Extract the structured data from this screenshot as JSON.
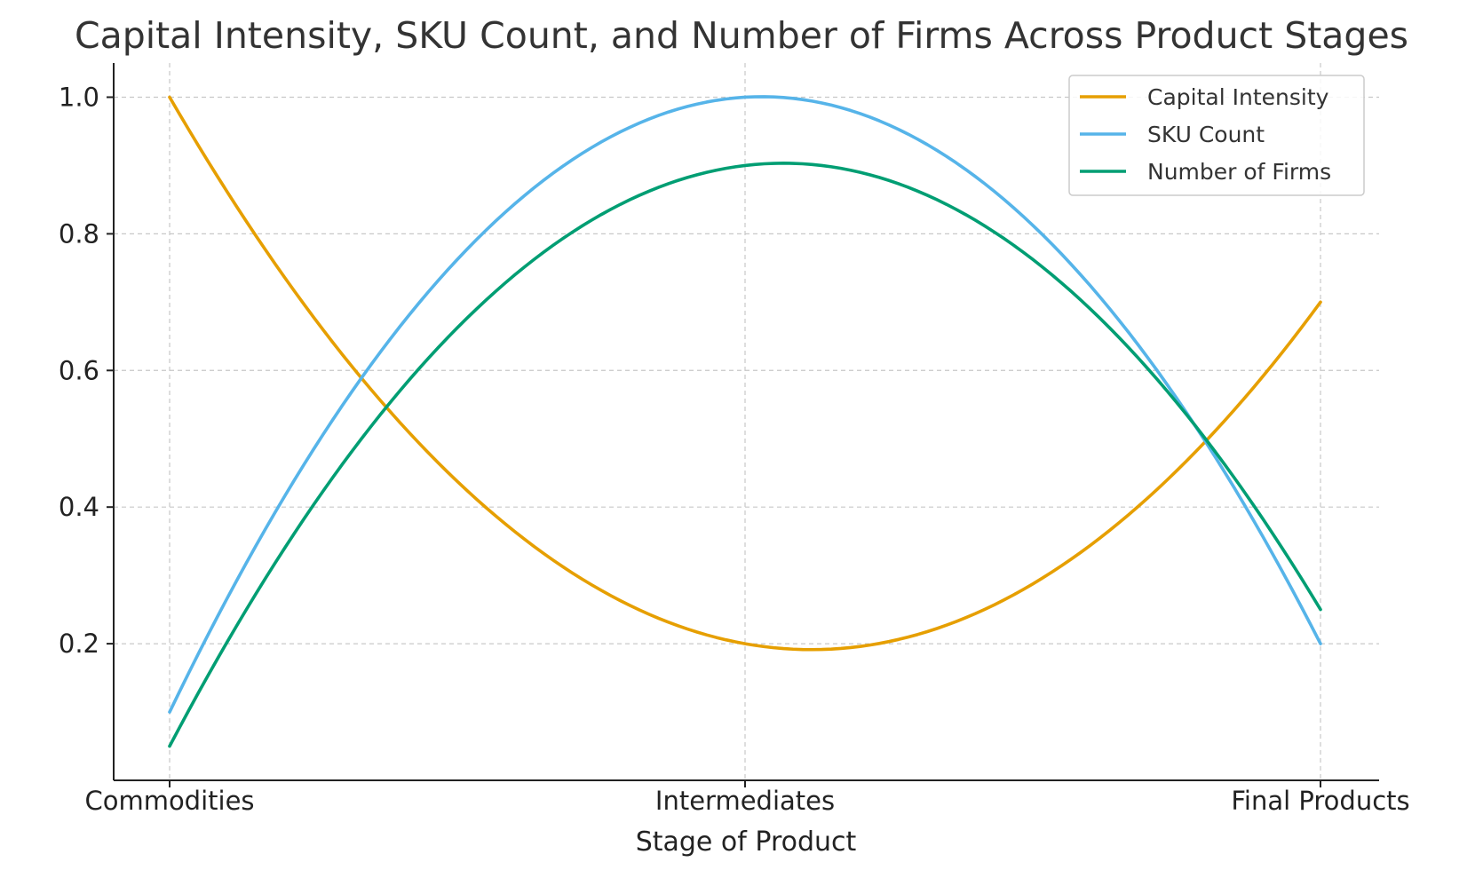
{
  "chart_data": {
    "type": "line",
    "title": "Capital Intensity, SKU Count, and Number of Firms Across Product Stages",
    "xlabel": "Stage of Product",
    "ylabel": "",
    "categories": [
      "Commodities",
      "Intermediates",
      "Final Products"
    ],
    "ylim": [
      0.0,
      1.05
    ],
    "yticks": [
      0.2,
      0.4,
      0.6,
      0.8,
      1.0
    ],
    "ytick_labels": [
      "0.2",
      "0.4",
      "0.6",
      "0.8",
      "1.0"
    ],
    "grid": true,
    "legend_position": "top-right",
    "smooth": true,
    "series": [
      {
        "name": "Capital Intensity",
        "color": "#E69F00",
        "values": [
          1.0,
          0.2,
          0.7
        ]
      },
      {
        "name": "SKU Count",
        "color": "#56B4E9",
        "values": [
          0.1,
          1.0,
          0.2
        ]
      },
      {
        "name": "Number of Firms",
        "color": "#009E73",
        "values": [
          0.05,
          0.9,
          0.25
        ]
      }
    ]
  }
}
